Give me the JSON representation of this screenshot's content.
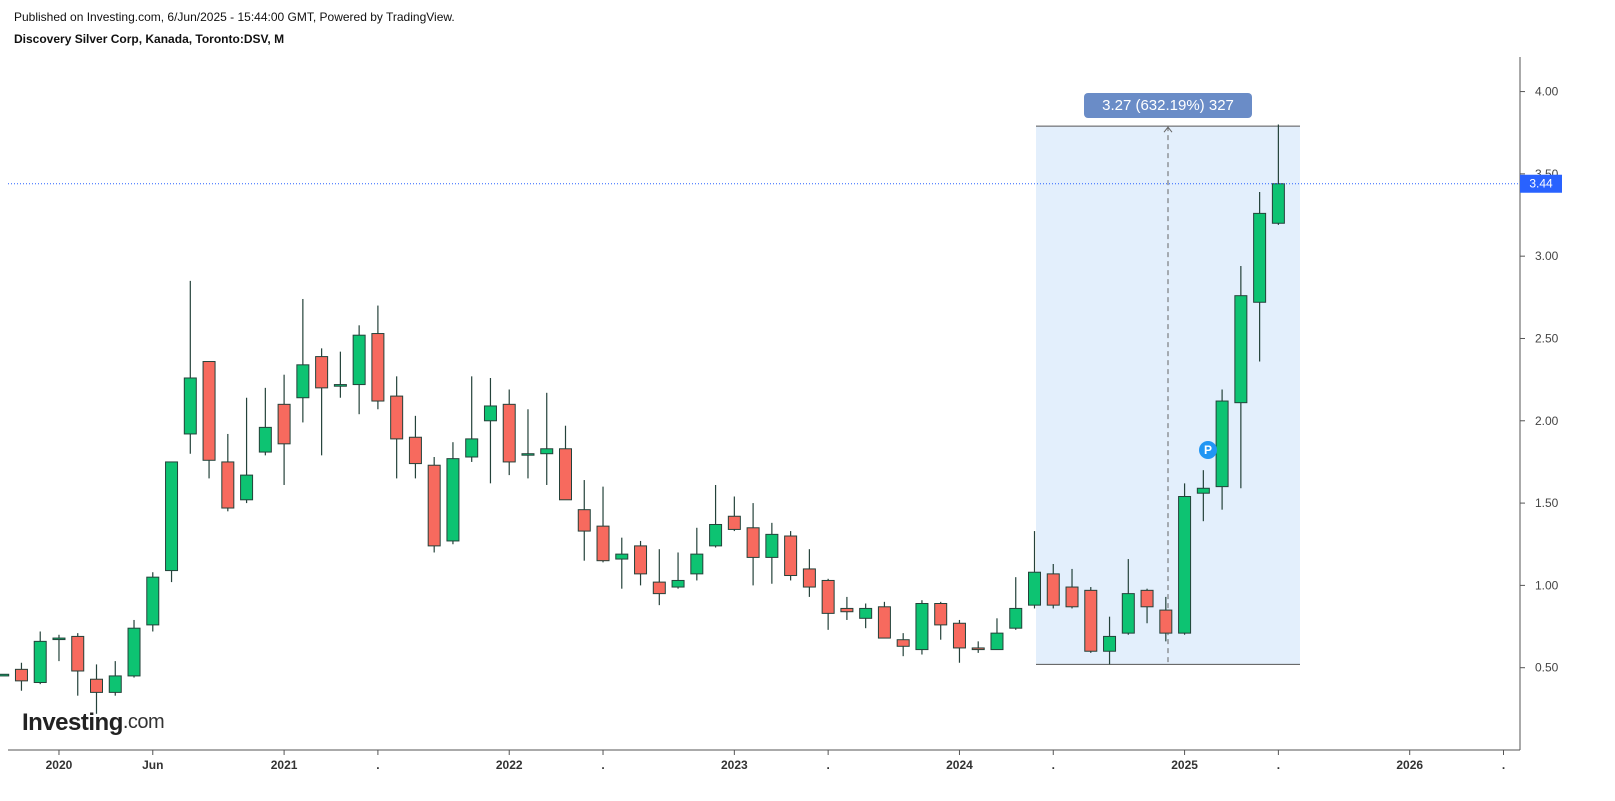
{
  "header": {
    "published": "Published on Investing.com, 6/Jun/2025 - 15:44:00 GMT, Powered by TradingView.",
    "symbol": "Discovery Silver Corp, Kanada, Toronto:DSV, M"
  },
  "logo": {
    "name": "Investing",
    "suffix": ".com"
  },
  "chart_data": {
    "type": "candlestick",
    "categories": [
      null,
      null,
      null,
      "2020",
      null,
      null,
      null,
      null,
      "Jun",
      null,
      null,
      null,
      null,
      null,
      null,
      "2021",
      null,
      null,
      null,
      null,
      ".",
      null,
      null,
      null,
      null,
      null,
      null,
      "2022",
      null,
      null,
      null,
      null,
      ".",
      null,
      null,
      null,
      null,
      null,
      null,
      "2023",
      null,
      null,
      null,
      null,
      ".",
      null,
      null,
      null,
      null,
      null,
      null,
      "2024",
      null,
      null,
      null,
      null,
      ".",
      null,
      null,
      null,
      null,
      null,
      null,
      "2025",
      null,
      null,
      null,
      null,
      ".",
      null,
      null,
      null,
      null,
      null,
      null,
      "2026",
      null,
      null,
      null,
      null,
      "."
    ],
    "open": [
      0.45,
      0.49,
      0.41,
      0.68,
      0.69,
      0.43,
      0.35,
      0.45,
      0.76,
      1.09,
      1.92,
      2.36,
      1.75,
      1.52,
      1.81,
      2.1,
      2.14,
      2.39,
      2.21,
      2.22,
      2.53,
      2.15,
      1.9,
      1.73,
      1.27,
      1.78,
      2.0,
      2.1,
      1.8,
      1.8,
      1.83,
      1.46,
      1.36,
      1.16,
      1.24,
      1.02,
      0.99,
      1.07,
      1.24,
      1.42,
      1.35,
      1.17,
      1.3,
      1.1,
      1.03,
      0.86,
      0.8,
      0.87,
      0.67,
      0.61,
      0.89,
      0.77,
      0.62,
      0.61,
      0.74,
      0.88,
      1.07,
      0.99,
      0.97,
      0.6,
      0.71,
      0.97,
      0.85,
      0.71,
      1.56,
      1.6,
      2.11,
      2.72,
      3.2,
      null,
      null,
      null,
      null,
      null,
      null,
      null,
      null,
      null,
      null,
      null,
      null
    ],
    "high": [
      0.46,
      0.53,
      0.72,
      0.7,
      0.71,
      0.52,
      0.54,
      0.79,
      1.08,
      1.75,
      2.85,
      2.36,
      1.92,
      2.14,
      2.2,
      2.28,
      2.74,
      2.44,
      2.42,
      2.58,
      2.7,
      2.27,
      2.03,
      1.78,
      1.87,
      2.27,
      2.26,
      2.19,
      2.07,
      2.17,
      1.97,
      1.64,
      1.6,
      1.29,
      1.27,
      1.22,
      1.2,
      1.35,
      1.61,
      1.54,
      1.5,
      1.38,
      1.33,
      1.22,
      1.04,
      0.93,
      0.89,
      0.9,
      0.71,
      0.91,
      0.9,
      0.79,
      0.66,
      0.8,
      1.05,
      1.33,
      1.13,
      1.1,
      0.99,
      0.81,
      1.16,
      0.98,
      0.93,
      1.62,
      1.7,
      2.19,
      2.94,
      3.39,
      3.8,
      null,
      null,
      null,
      null,
      null,
      null,
      null,
      null,
      null,
      null,
      null,
      null
    ],
    "low": [
      0.45,
      0.36,
      0.4,
      0.54,
      0.33,
      0.22,
      0.33,
      0.44,
      0.72,
      1.02,
      1.8,
      1.65,
      1.45,
      1.5,
      1.79,
      1.61,
      1.99,
      1.79,
      2.14,
      2.04,
      2.07,
      1.65,
      1.65,
      1.2,
      1.25,
      1.75,
      1.62,
      1.67,
      1.65,
      1.61,
      1.52,
      1.15,
      1.14,
      0.98,
      1.0,
      0.88,
      0.98,
      1.03,
      1.23,
      1.33,
      1.0,
      1.01,
      1.03,
      0.93,
      0.73,
      0.79,
      0.74,
      0.68,
      0.57,
      0.58,
      0.67,
      0.53,
      0.59,
      0.61,
      0.73,
      0.86,
      0.86,
      0.86,
      0.59,
      0.52,
      0.7,
      0.77,
      0.66,
      0.7,
      1.39,
      1.46,
      1.59,
      2.36,
      3.19,
      null,
      null,
      null,
      null,
      null,
      null,
      null,
      null,
      null,
      null,
      null,
      null
    ],
    "close": [
      0.46,
      0.42,
      0.66,
      0.68,
      0.48,
      0.35,
      0.45,
      0.74,
      1.05,
      1.75,
      2.26,
      1.76,
      1.47,
      1.67,
      1.96,
      1.86,
      2.34,
      2.2,
      2.22,
      2.52,
      2.12,
      1.89,
      1.74,
      1.24,
      1.77,
      1.89,
      2.09,
      1.75,
      1.8,
      1.83,
      1.52,
      1.33,
      1.15,
      1.19,
      1.07,
      0.95,
      1.03,
      1.19,
      1.37,
      1.34,
      1.17,
      1.31,
      1.06,
      0.99,
      0.83,
      0.84,
      0.86,
      0.68,
      0.63,
      0.89,
      0.76,
      0.62,
      0.61,
      0.71,
      0.86,
      1.08,
      0.88,
      0.87,
      0.6,
      0.69,
      0.95,
      0.87,
      0.71,
      1.54,
      1.59,
      2.12,
      2.76,
      3.26,
      3.44,
      null,
      null,
      null,
      null,
      null,
      null,
      null,
      null,
      null,
      null,
      null,
      null
    ],
    "up_color": "#0dc372",
    "down_color": "#f76a5e",
    "wick_color": "#24423a",
    "ylim": [
      0,
      4.21
    ],
    "yticks": [
      {
        "value": 0.5,
        "label": "0.50"
      },
      {
        "value": 1,
        "label": "1.00"
      },
      {
        "value": 1.5,
        "label": "1.50"
      },
      {
        "value": 2,
        "label": "2.00"
      },
      {
        "value": 2.5,
        "label": "2.50"
      },
      {
        "value": 3,
        "label": "3.00"
      },
      {
        "value": 3.5,
        "label": "3.50"
      },
      {
        "value": 4,
        "label": "4.00"
      }
    ],
    "last_price": 3.44,
    "last_price_color": "#2962ff",
    "measure": {
      "label": "3.27 (632.19%) 327",
      "low": 0.52,
      "high": 3.79,
      "color": "#6a8cc7",
      "fill": "#e3effc"
    },
    "marker": {
      "label": "P",
      "color": "#2196f3"
    }
  }
}
